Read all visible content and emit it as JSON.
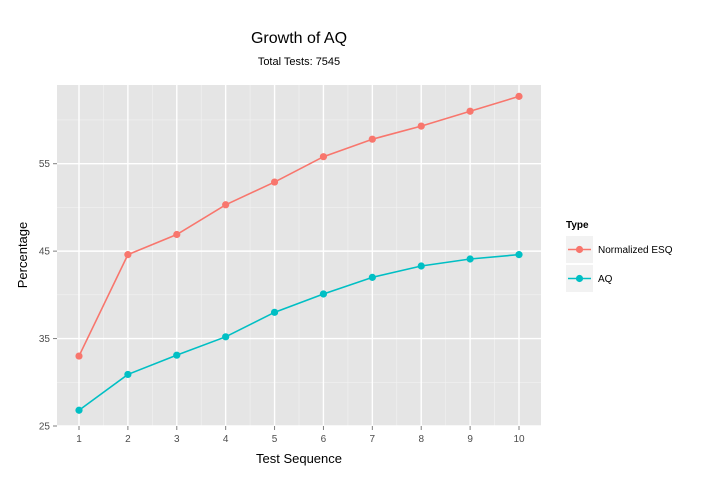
{
  "chart_data": {
    "type": "line",
    "title": "Growth of AQ",
    "subtitle": "Total Tests:  7545",
    "xlabel": "Test Sequence",
    "ylabel": "Percentage",
    "x": [
      1,
      2,
      3,
      4,
      5,
      6,
      7,
      8,
      9,
      10
    ],
    "x_ticks": [
      "1",
      "2",
      "3",
      "4",
      "5",
      "6",
      "7",
      "8",
      "9",
      "10"
    ],
    "y_ticks": [
      25,
      35,
      45,
      55
    ],
    "ylim": [
      25,
      64
    ],
    "xlim": [
      0.55,
      10.45
    ],
    "grid": true,
    "legend_position": "right",
    "legend_title": "Type",
    "series": [
      {
        "name": "Normalized ESQ",
        "color": "#F8766D",
        "values": [
          33.0,
          44.6,
          46.9,
          50.3,
          52.9,
          55.8,
          57.8,
          59.3,
          61.0,
          62.7
        ]
      },
      {
        "name": "AQ",
        "color": "#00BFC4",
        "values": [
          26.8,
          30.9,
          33.1,
          35.2,
          38.0,
          40.1,
          42.0,
          43.3,
          44.1,
          44.6
        ]
      }
    ]
  }
}
